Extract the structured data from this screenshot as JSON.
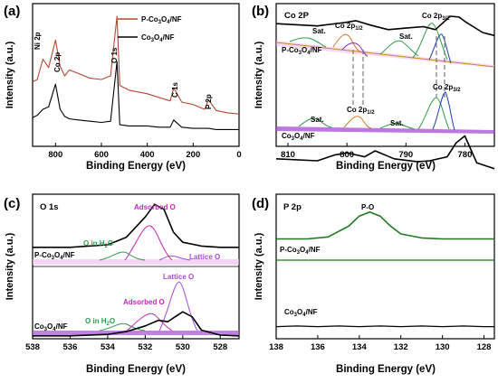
{
  "chart_data": [
    {
      "panel": "(a)",
      "type": "line",
      "xlabel": "Binding Energy (eV)",
      "ylabel": "Intensity (a.u.)",
      "xlim": [
        900,
        0
      ],
      "xticks": [
        "800",
        "600",
        "400",
        "200",
        "0"
      ],
      "legend": [
        "P-Co3O4/NF",
        "Co3O4/NF"
      ],
      "legend_position": "top-right",
      "annotations": [
        "Ni 2p",
        "Co 2p",
        "O 1s",
        "C 1s",
        "P 2p"
      ],
      "series": [
        {
          "name": "P-Co3O4/NF",
          "color": "#b5472f",
          "x": [
            900,
            880,
            855,
            830,
            800,
            780,
            760,
            740,
            700,
            650,
            600,
            560,
            532,
            520,
            480,
            400,
            350,
            300,
            285,
            250,
            200,
            150,
            133,
            100,
            50,
            0
          ],
          "y": [
            0.45,
            0.47,
            0.64,
            0.57,
            0.8,
            0.58,
            0.5,
            0.55,
            0.52,
            0.48,
            0.47,
            0.5,
            1.0,
            0.42,
            0.38,
            0.35,
            0.32,
            0.29,
            0.4,
            0.28,
            0.26,
            0.22,
            0.3,
            0.21,
            0.19,
            0.18
          ]
        },
        {
          "name": "Co3O4/NF",
          "color": "#000000",
          "x": [
            900,
            880,
            855,
            830,
            800,
            780,
            760,
            740,
            700,
            650,
            600,
            560,
            532,
            520,
            480,
            400,
            350,
            300,
            285,
            250,
            200,
            150,
            133,
            100,
            50,
            0
          ],
          "y": [
            0.15,
            0.17,
            0.22,
            0.24,
            0.43,
            0.22,
            0.16,
            0.14,
            0.13,
            0.12,
            0.11,
            0.12,
            0.62,
            0.09,
            0.08,
            0.08,
            0.07,
            0.07,
            0.13,
            0.07,
            0.06,
            0.06,
            0.06,
            0.05,
            0.05,
            0.05
          ]
        }
      ]
    },
    {
      "panel": "(b)",
      "type": "line",
      "title": "Co 2P",
      "xlabel": "Binding Energy (eV)",
      "ylabel": "Intensity (a.u.)",
      "xlim": [
        812,
        775
      ],
      "xticks": [
        "810",
        "800",
        "790",
        "780"
      ],
      "annotations": [
        "Sat.",
        "Co 2p1/2",
        "Sat.",
        "Co 2p3/2",
        "P-Co3O4/NF",
        "Sat.",
        "Co 2p1/2",
        "Sat.",
        "Co 2p3/2",
        "Co3O4/NF"
      ],
      "series": [
        {
          "name": "P-Co3O4/NF",
          "color": "#000000",
          "x": [
            812,
            805,
            800,
            798.5,
            796,
            793,
            790,
            787,
            785,
            782.5,
            781,
            779.8,
            777,
            775
          ],
          "y": [
            0.9,
            0.87,
            0.92,
            0.94,
            0.88,
            0.82,
            0.84,
            0.86,
            0.82,
            1.0,
            0.99,
            0.92,
            0.78,
            0.74
          ]
        },
        {
          "name": "Co3O4/NF",
          "color": "#000000",
          "x": [
            812,
            805,
            802,
            800,
            797,
            795.2,
            792,
            788,
            786,
            783,
            781.5,
            780,
            778,
            775
          ],
          "y": [
            0.22,
            0.2,
            0.26,
            0.28,
            0.24,
            0.3,
            0.22,
            0.19,
            0.2,
            0.24,
            0.38,
            0.45,
            0.18,
            0.12
          ]
        }
      ]
    },
    {
      "panel": "(c)",
      "type": "line",
      "title": "O 1s",
      "xlabel": "Binding Energy (eV)",
      "ylabel": "Intensity (a.u.)",
      "xlim": [
        538,
        527
      ],
      "xticks": [
        "538",
        "536",
        "534",
        "532",
        "530",
        "528"
      ],
      "annotations": [
        "Adsorbed O",
        "O in H2O",
        "Lattice O",
        "P-Co3O4/NF",
        "Lattice O",
        "Adsorbed O",
        "O in H2O",
        "Co3O4/NF"
      ],
      "series": [
        {
          "name": "P-Co3O4/NF",
          "color": "#000000",
          "x": [
            538,
            536,
            534,
            533,
            532,
            531.5,
            531,
            530.5,
            530,
            529,
            528,
            527
          ],
          "y": [
            0.58,
            0.58,
            0.6,
            0.66,
            0.82,
            0.92,
            0.88,
            0.7,
            0.62,
            0.59,
            0.58,
            0.58
          ]
        },
        {
          "name": "Co3O4/NF",
          "color": "#000000",
          "x": [
            538,
            536,
            534,
            533,
            532,
            531.3,
            530.8,
            530,
            529.5,
            529,
            528,
            527
          ],
          "y": [
            0.08,
            0.08,
            0.1,
            0.14,
            0.22,
            0.3,
            0.28,
            0.42,
            0.35,
            0.16,
            0.09,
            0.08
          ]
        }
      ]
    },
    {
      "panel": "(d)",
      "type": "line",
      "title": "P 2p",
      "xlabel": "Binding Energy (eV)",
      "ylabel": "Intensity (a.u.)",
      "xlim": [
        138,
        127.5
      ],
      "xticks": [
        "138",
        "136",
        "134",
        "132",
        "130",
        "128"
      ],
      "annotations": [
        "P-O",
        "P-Co3O4/NF",
        "Co3O4/NF"
      ],
      "series": [
        {
          "name": "P-Co3O4/NF",
          "color": "#1b7a1b",
          "x": [
            138,
            136.5,
            135.5,
            134.5,
            134,
            133.5,
            133,
            132.5,
            132,
            131,
            130,
            128,
            127.5
          ],
          "y": [
            0.55,
            0.55,
            0.57,
            0.68,
            0.78,
            0.82,
            0.78,
            0.68,
            0.6,
            0.56,
            0.55,
            0.55,
            0.55
          ]
        },
        {
          "name": "Co3O4/NF",
          "color": "#000000",
          "x": [
            138,
            137,
            136,
            135,
            134,
            133,
            132,
            131,
            130,
            129,
            128,
            127.5
          ],
          "y": [
            0.12,
            0.13,
            0.12,
            0.13,
            0.12,
            0.13,
            0.12,
            0.13,
            0.12,
            0.13,
            0.12,
            0.12
          ]
        }
      ]
    }
  ],
  "labels": {
    "panel_a": "(a)",
    "panel_b": "(b)",
    "panel_c": "(c)",
    "panel_d": "(d)",
    "xlabel": "Binding Energy (eV)",
    "ylabel": "Intensity (a.u.)",
    "b_title": "Co 2P",
    "c_title": "O 1s",
    "d_title": "P 2p"
  }
}
